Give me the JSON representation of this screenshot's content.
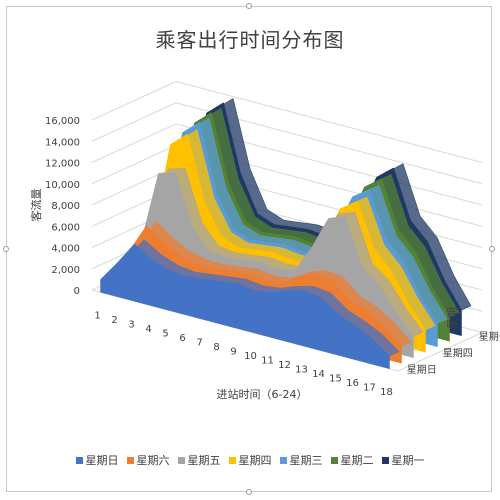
{
  "chart_data": {
    "type": "area",
    "variant": "3d-stacked-depth",
    "title": "乘客出行时间分布图",
    "xlabel": "进站时间（6-24）",
    "ylabel": "客流量",
    "zlabel": "星期",
    "categories": [
      "1",
      "2",
      "3",
      "4",
      "5",
      "6",
      "7",
      "8",
      "9",
      "10",
      "11",
      "12",
      "13",
      "14",
      "15",
      "16",
      "17",
      "18"
    ],
    "ylim": [
      0,
      16000
    ],
    "yticks": [
      "0",
      "2,000",
      "4,000",
      "6,000",
      "8,000",
      "10,000",
      "12,000",
      "14,000",
      "16,000"
    ],
    "depth_labels": [
      "星期日",
      "星期四",
      "星期一"
    ],
    "grid": true,
    "legend_position": "bottom",
    "series": [
      {
        "name": "星期一",
        "color": "#1f3864",
        "values": [
          1800,
          5000,
          14600,
          16000,
          9800,
          6400,
          5800,
          6000,
          6200,
          6000,
          6000,
          8800,
          12800,
          14100,
          9600,
          8000,
          4800,
          2400
        ]
      },
      {
        "name": "星期二",
        "color": "#548235",
        "values": [
          1800,
          5000,
          14200,
          15600,
          9400,
          6200,
          5600,
          5800,
          6000,
          5800,
          5800,
          8600,
          12400,
          13600,
          9200,
          7600,
          4600,
          2300
        ]
      },
      {
        "name": "星期三",
        "color": "#5b9bd5",
        "values": [
          1800,
          4800,
          13800,
          15200,
          9000,
          6000,
          5400,
          5600,
          5800,
          5600,
          5600,
          8400,
          12000,
          13100,
          8800,
          7200,
          4400,
          2200
        ]
      },
      {
        "name": "星期四",
        "color": "#ffc000",
        "values": [
          1800,
          4600,
          13200,
          14600,
          8600,
          5800,
          5200,
          5400,
          5600,
          5400,
          5400,
          8000,
          11400,
          12500,
          8400,
          6800,
          4200,
          2100
        ]
      },
      {
        "name": "星期五",
        "color": "#a5a5a5",
        "values": [
          1600,
          4200,
          11000,
          11500,
          6800,
          5000,
          4800,
          5000,
          5200,
          5000,
          5200,
          7800,
          11000,
          11600,
          7200,
          6000,
          3800,
          2000
        ]
      },
      {
        "name": "星期六",
        "color": "#ed7d31",
        "values": [
          1400,
          3800,
          6600,
          5400,
          4600,
          4200,
          4200,
          4400,
          4600,
          4400,
          4600,
          5600,
          6200,
          6000,
          4600,
          4000,
          3000,
          1600
        ]
      },
      {
        "name": "星期日",
        "color": "#4472c4",
        "values": [
          1200,
          3200,
          5400,
          4400,
          3800,
          3600,
          3800,
          4000,
          4200,
          4000,
          4200,
          4800,
          5200,
          5000,
          3800,
          3200,
          2400,
          1200
        ]
      }
    ]
  },
  "legend_order": [
    "星期日",
    "星期六",
    "星期五",
    "星期四",
    "星期三",
    "星期二",
    "星期一"
  ]
}
